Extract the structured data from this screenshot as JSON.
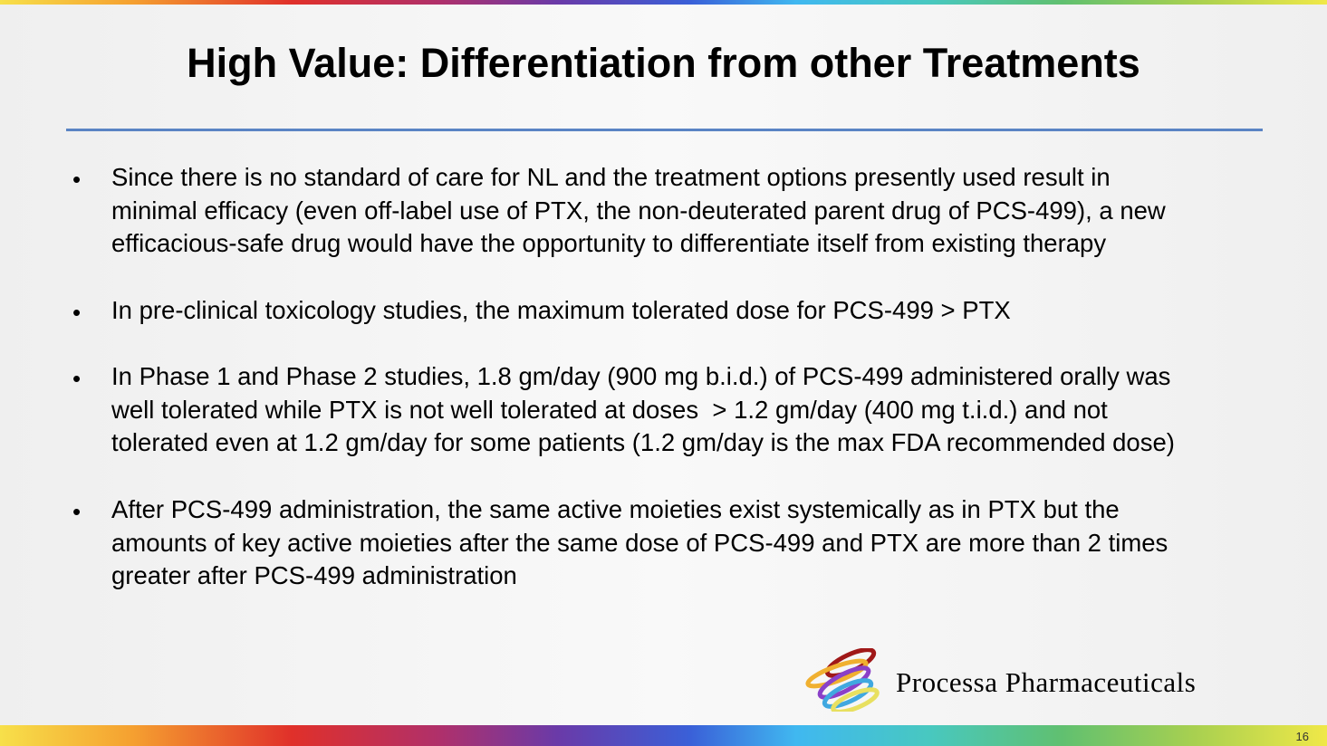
{
  "title": "High Value: Differentiation from other Treatments",
  "bullets": [
    {
      "lines": [
        "Since there is no standard of care for NL and the treatment options presently used result in",
        "minimal efficacy (even off-label use of PTX, the non-deuterated parent drug of PCS-499), a new",
        "efficacious-safe drug would have the opportunity to differentiate itself from existing therapy"
      ]
    },
    {
      "lines": [
        "In pre-clinical toxicology studies, the maximum tolerated dose for PCS-499 > PTX"
      ]
    },
    {
      "lines": [
        "In Phase 1 and Phase 2 studies, 1.8 gm/day (900 mg b.i.d.) of PCS-499 administered orally was",
        "well tolerated while PTX is not well tolerated at doses  > 1.2 gm/day (400 mg t.i.d.) and not",
        "tolerated even at 1.2 gm/day for some patients (1.2 gm/day is the max FDA recommended dose)"
      ]
    },
    {
      "lines": [
        "After PCS-499 administration, the same active moieties exist systemically as in PTX but the",
        "amounts of key active moieties after the same dose of PCS-499 and PTX are more than 2 times",
        "greater after PCS-499 administration"
      ]
    }
  ],
  "bullet_char": "•",
  "brand": "Processa Pharmaceuticals",
  "page_number": "16"
}
